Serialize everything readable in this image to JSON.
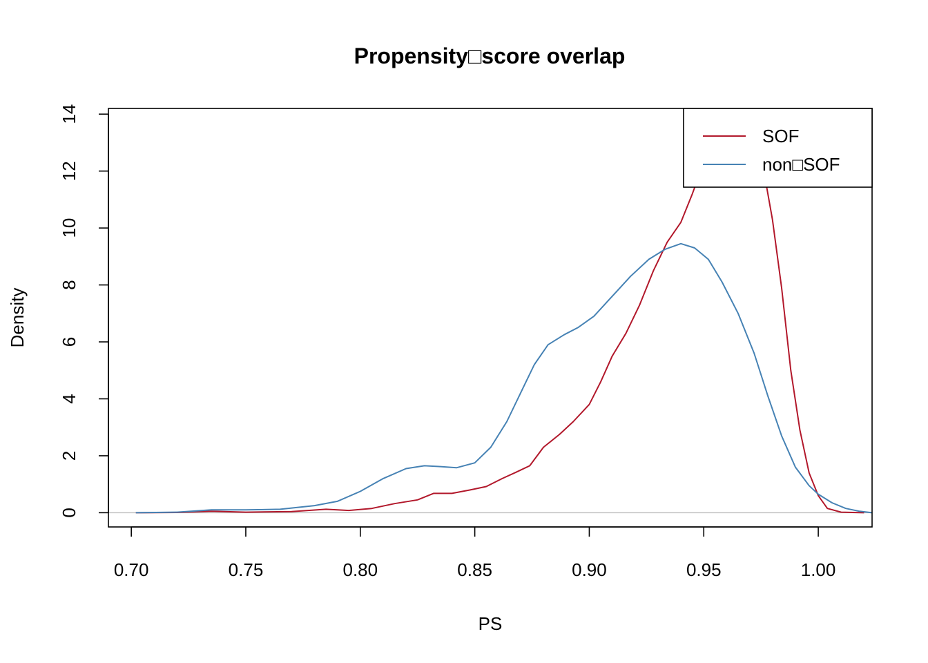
{
  "chart_data": {
    "type": "line",
    "title": "Propensity□score overlap",
    "xlabel": "PS",
    "ylabel": "Density",
    "xlim": [
      0.69,
      1.0235
    ],
    "ylim": [
      -0.5,
      14.2
    ],
    "xticks": [
      "0.70",
      "0.75",
      "0.80",
      "0.85",
      "0.90",
      "0.95",
      "1.00"
    ],
    "yticks": [
      "0",
      "2",
      "4",
      "6",
      "8",
      "10",
      "12",
      "14"
    ],
    "grid": false,
    "zero_line": true,
    "legend_position": "top-right",
    "series": [
      {
        "name": "SOF",
        "color": "#b2182b",
        "points": [
          [
            0.702,
            0.0
          ],
          [
            0.72,
            0.01
          ],
          [
            0.735,
            0.05
          ],
          [
            0.75,
            0.02
          ],
          [
            0.77,
            0.04
          ],
          [
            0.785,
            0.12
          ],
          [
            0.795,
            0.08
          ],
          [
            0.805,
            0.15
          ],
          [
            0.815,
            0.32
          ],
          [
            0.825,
            0.45
          ],
          [
            0.832,
            0.68
          ],
          [
            0.84,
            0.68
          ],
          [
            0.848,
            0.8
          ],
          [
            0.855,
            0.92
          ],
          [
            0.862,
            1.2
          ],
          [
            0.868,
            1.42
          ],
          [
            0.874,
            1.65
          ],
          [
            0.88,
            2.3
          ],
          [
            0.887,
            2.75
          ],
          [
            0.893,
            3.2
          ],
          [
            0.9,
            3.8
          ],
          [
            0.905,
            4.6
          ],
          [
            0.91,
            5.5
          ],
          [
            0.916,
            6.3
          ],
          [
            0.922,
            7.3
          ],
          [
            0.928,
            8.5
          ],
          [
            0.934,
            9.5
          ],
          [
            0.94,
            10.2
          ],
          [
            0.945,
            11.2
          ],
          [
            0.95,
            12.3
          ],
          [
            0.955,
            13.3
          ],
          [
            0.96,
            14.0
          ],
          [
            0.966,
            14.4
          ],
          [
            0.972,
            13.6
          ],
          [
            0.976,
            12.1
          ],
          [
            0.98,
            10.3
          ],
          [
            0.984,
            7.9
          ],
          [
            0.988,
            5.0
          ],
          [
            0.992,
            2.9
          ],
          [
            0.996,
            1.4
          ],
          [
            1.0,
            0.6
          ],
          [
            1.004,
            0.15
          ],
          [
            1.01,
            0.02
          ],
          [
            1.02,
            0.0
          ]
        ]
      },
      {
        "name": "non□SOF",
        "color": "#4682b4",
        "points": [
          [
            0.702,
            0.0
          ],
          [
            0.72,
            0.02
          ],
          [
            0.735,
            0.1
          ],
          [
            0.75,
            0.1
          ],
          [
            0.765,
            0.12
          ],
          [
            0.78,
            0.25
          ],
          [
            0.79,
            0.4
          ],
          [
            0.8,
            0.75
          ],
          [
            0.81,
            1.2
          ],
          [
            0.82,
            1.55
          ],
          [
            0.828,
            1.65
          ],
          [
            0.835,
            1.62
          ],
          [
            0.842,
            1.58
          ],
          [
            0.85,
            1.75
          ],
          [
            0.857,
            2.3
          ],
          [
            0.864,
            3.2
          ],
          [
            0.87,
            4.2
          ],
          [
            0.876,
            5.2
          ],
          [
            0.882,
            5.9
          ],
          [
            0.889,
            6.25
          ],
          [
            0.895,
            6.5
          ],
          [
            0.902,
            6.9
          ],
          [
            0.91,
            7.6
          ],
          [
            0.918,
            8.3
          ],
          [
            0.926,
            8.9
          ],
          [
            0.933,
            9.25
          ],
          [
            0.94,
            9.45
          ],
          [
            0.946,
            9.3
          ],
          [
            0.952,
            8.9
          ],
          [
            0.958,
            8.1
          ],
          [
            0.965,
            7.0
          ],
          [
            0.972,
            5.6
          ],
          [
            0.978,
            4.1
          ],
          [
            0.984,
            2.7
          ],
          [
            0.99,
            1.6
          ],
          [
            0.996,
            0.95
          ],
          [
            1.0,
            0.65
          ],
          [
            1.006,
            0.35
          ],
          [
            1.012,
            0.15
          ],
          [
            1.018,
            0.05
          ],
          [
            1.0235,
            0.0
          ]
        ]
      }
    ]
  }
}
